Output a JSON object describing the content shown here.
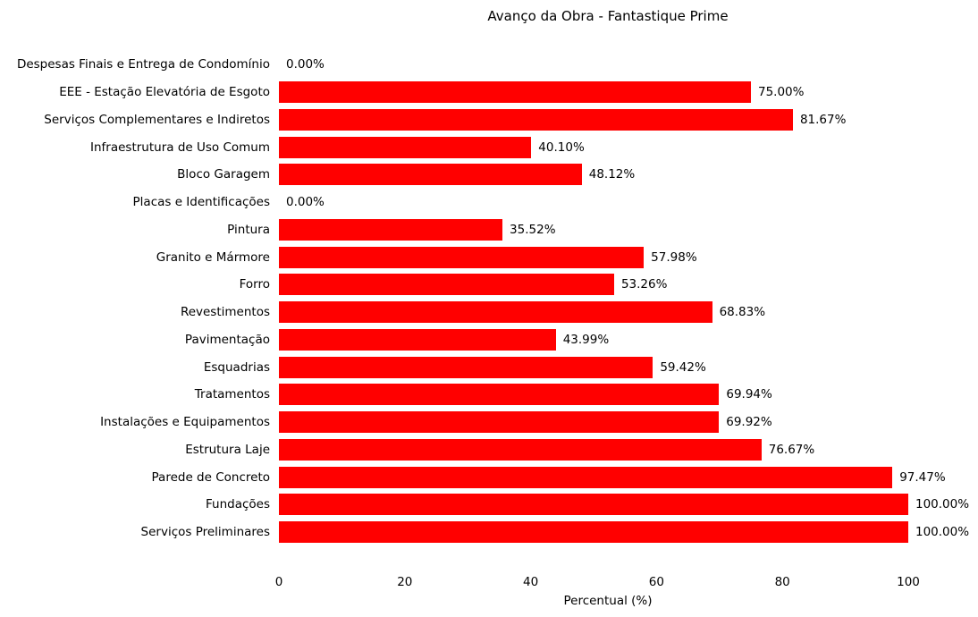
{
  "chart_data": {
    "type": "bar",
    "orientation": "horizontal",
    "title": "Avanço da Obra - Fantastique Prime",
    "xlabel": "Percentual (%)",
    "xlim": [
      0,
      100
    ],
    "xticks": [
      "0",
      "20",
      "40",
      "60",
      "80",
      "100"
    ],
    "xtick_values": [
      0,
      20,
      40,
      60,
      80,
      100
    ],
    "bar_color": "#ff0000",
    "grid": false,
    "legend": "none",
    "categories": [
      "Despesas Finais e Entrega de Condomínio",
      "EEE - Estação Elevatória de Esgoto",
      "Serviços Complementares e Indiretos",
      "Infraestrutura de Uso Comum",
      "Bloco Garagem",
      "Placas e Identificações",
      "Pintura",
      "Granito e Mármore",
      "Forro",
      "Revestimentos",
      "Pavimentação",
      "Esquadrias",
      "Tratamentos",
      "Instalações e Equipamentos",
      "Estrutura Laje",
      "Parede de Concreto",
      "Fundações",
      "Serviços Preliminares"
    ],
    "values": [
      0.0,
      75.0,
      81.67,
      40.1,
      48.12,
      0.0,
      35.52,
      57.98,
      53.26,
      68.83,
      43.99,
      59.42,
      69.94,
      69.92,
      76.67,
      97.47,
      100.0,
      100.0
    ],
    "value_labels": [
      "0.00%",
      "75.00%",
      "81.67%",
      "40.10%",
      "48.12%",
      "0.00%",
      "35.52%",
      "57.98%",
      "53.26%",
      "68.83%",
      "43.99%",
      "59.42%",
      "69.94%",
      "69.92%",
      "76.67%",
      "97.47%",
      "100.00%",
      "100.00%"
    ]
  }
}
